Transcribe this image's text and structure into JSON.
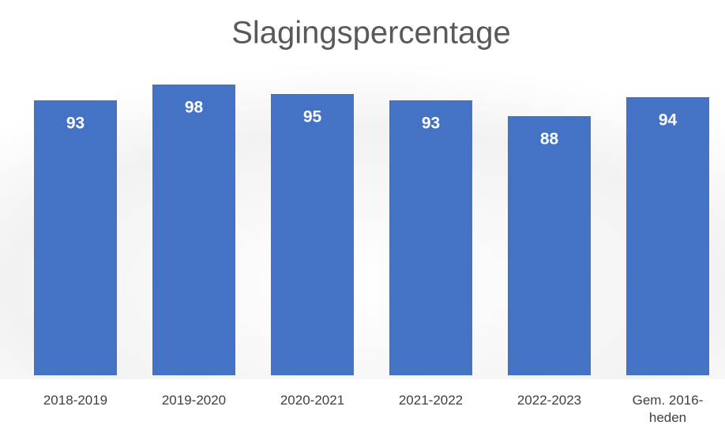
{
  "chart_data": {
    "type": "bar",
    "title": "Slagingspercentage",
    "categories": [
      "2018-2019",
      "2019-2020",
      "2020-2021",
      "2021-2022",
      "2022-2023",
      "Gem. 2016-heden"
    ],
    "values": [
      93,
      98,
      95,
      93,
      88,
      94
    ],
    "color": "#4472c4",
    "ylim": [
      6,
      100
    ],
    "grid": false
  }
}
